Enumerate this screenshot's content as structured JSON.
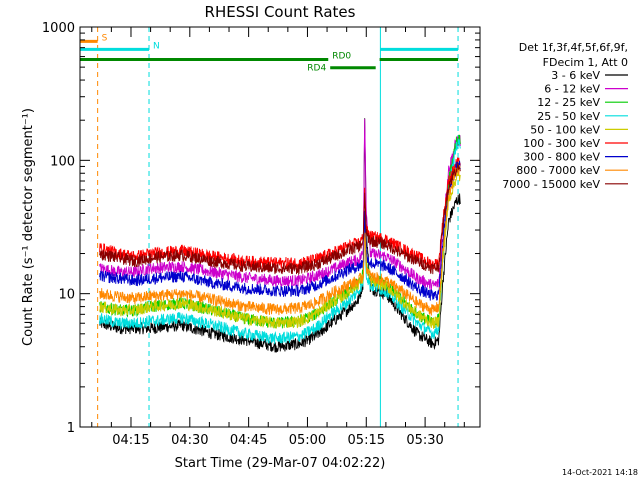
{
  "chart_data": {
    "type": "line",
    "title": "RHESSI Count Rates",
    "xlabel": "Start Time (29-Mar-07 04:02:22)",
    "ylabel": "Count Rate (s⁻¹ detector segment⁻¹)",
    "yscale": "log",
    "ylim": [
      1,
      1000
    ],
    "xlim_min": [
      0,
      102
    ],
    "x_ticks": [
      {
        "t": 13,
        "label": "04:15"
      },
      {
        "t": 28,
        "label": "04:30"
      },
      {
        "t": 43,
        "label": "04:45"
      },
      {
        "t": 58,
        "label": "05:00"
      },
      {
        "t": 73,
        "label": "05:15"
      },
      {
        "t": 88,
        "label": "05:30"
      }
    ],
    "y_ticks": [
      {
        "v": 1,
        "label": "1"
      },
      {
        "v": 10,
        "label": "10"
      },
      {
        "v": 100,
        "label": "100"
      },
      {
        "v": 1000,
        "label": "1000"
      }
    ],
    "legend_header": [
      "Det 1f,3f,4f,5f,6f,9f,",
      "FDecim 1, Att 0"
    ],
    "legend_position": "right",
    "series": [
      {
        "name": "3 - 6 keV",
        "color": "#000000",
        "values": [
          [
            5,
            6
          ],
          [
            10,
            5.5
          ],
          [
            14,
            5.5
          ],
          [
            18,
            5.5
          ],
          [
            26,
            5.8
          ],
          [
            34,
            5
          ],
          [
            42,
            4.5
          ],
          [
            50,
            4
          ],
          [
            56,
            4.2
          ],
          [
            60,
            4.8
          ],
          [
            64,
            6
          ],
          [
            68,
            7.5
          ],
          [
            71,
            9
          ],
          [
            72.2,
            12
          ],
          [
            72.6,
            210
          ],
          [
            73,
            30
          ],
          [
            74,
            11
          ],
          [
            78,
            10
          ],
          [
            82,
            7
          ],
          [
            86,
            5
          ],
          [
            90,
            4.2
          ],
          [
            91.5,
            4.5
          ],
          [
            92.5,
            12
          ],
          [
            94,
            35
          ],
          [
            96,
            50
          ],
          [
            97,
            52
          ]
        ]
      },
      {
        "name": "6 - 12 keV",
        "color": "#cc00cc",
        "values": [
          [
            5,
            15.5
          ],
          [
            10,
            14.5
          ],
          [
            14,
            14.5
          ],
          [
            18,
            15.5
          ],
          [
            26,
            16
          ],
          [
            34,
            14.5
          ],
          [
            42,
            13.2
          ],
          [
            50,
            12.5
          ],
          [
            56,
            12.5
          ],
          [
            60,
            13.5
          ],
          [
            64,
            15
          ],
          [
            68,
            17
          ],
          [
            71,
            18
          ],
          [
            72.2,
            20
          ],
          [
            72.6,
            230
          ],
          [
            73,
            40
          ],
          [
            74,
            20
          ],
          [
            78,
            19
          ],
          [
            82,
            16
          ],
          [
            86,
            13
          ],
          [
            90,
            11.5
          ],
          [
            91.5,
            12
          ],
          [
            92.5,
            30
          ],
          [
            94,
            85
          ],
          [
            96,
            140
          ],
          [
            97,
            140
          ]
        ]
      },
      {
        "name": "12 - 25 keV",
        "color": "#00cc00",
        "values": [
          [
            5,
            8
          ],
          [
            10,
            7.5
          ],
          [
            14,
            7.5
          ],
          [
            18,
            8
          ],
          [
            26,
            8.5
          ],
          [
            34,
            7.5
          ],
          [
            42,
            6.5
          ],
          [
            50,
            6
          ],
          [
            56,
            6.2
          ],
          [
            60,
            7
          ],
          [
            64,
            8.5
          ],
          [
            68,
            10
          ],
          [
            71,
            12
          ],
          [
            72.2,
            14
          ],
          [
            72.6,
            40
          ],
          [
            73,
            17
          ],
          [
            74,
            13
          ],
          [
            78,
            12
          ],
          [
            82,
            9
          ],
          [
            86,
            7
          ],
          [
            90,
            6
          ],
          [
            91.5,
            6.5
          ],
          [
            92.5,
            20
          ],
          [
            94,
            70
          ],
          [
            96,
            140
          ],
          [
            97,
            145
          ]
        ]
      },
      {
        "name": "25 - 50 keV",
        "color": "#00dddd",
        "values": [
          [
            5,
            6.5
          ],
          [
            10,
            6
          ],
          [
            14,
            6
          ],
          [
            18,
            6.2
          ],
          [
            26,
            6.6
          ],
          [
            34,
            5.8
          ],
          [
            42,
            5
          ],
          [
            50,
            4.6
          ],
          [
            56,
            4.8
          ],
          [
            60,
            5.5
          ],
          [
            64,
            7
          ],
          [
            68,
            8.5
          ],
          [
            71,
            10.5
          ],
          [
            72.2,
            12
          ],
          [
            72.6,
            30
          ],
          [
            73,
            14
          ],
          [
            74,
            11.5
          ],
          [
            78,
            10.5
          ],
          [
            82,
            8
          ],
          [
            86,
            6
          ],
          [
            90,
            5
          ],
          [
            91.5,
            5.5
          ],
          [
            92.5,
            18
          ],
          [
            94,
            60
          ],
          [
            96,
            130
          ],
          [
            97,
            135
          ]
        ]
      },
      {
        "name": "50 - 100 keV",
        "color": "#cccc00",
        "values": [
          [
            5,
            8
          ],
          [
            10,
            7.5
          ],
          [
            14,
            7.5
          ],
          [
            18,
            8
          ],
          [
            26,
            8.5
          ],
          [
            34,
            7.5
          ],
          [
            42,
            6.5
          ],
          [
            50,
            6
          ],
          [
            56,
            6.2
          ],
          [
            60,
            7
          ],
          [
            64,
            8.5
          ],
          [
            68,
            10
          ],
          [
            71,
            12
          ],
          [
            72.2,
            13
          ],
          [
            72.6,
            35
          ],
          [
            73,
            16
          ],
          [
            74,
            12.5
          ],
          [
            78,
            11.5
          ],
          [
            82,
            9
          ],
          [
            86,
            7
          ],
          [
            90,
            6
          ],
          [
            91.5,
            6.2
          ],
          [
            92.5,
            17
          ],
          [
            94,
            50
          ],
          [
            96,
            75
          ],
          [
            97,
            75
          ]
        ]
      },
      {
        "name": "100 - 300 keV",
        "color": "#ff0000",
        "values": [
          [
            5,
            22
          ],
          [
            10,
            20
          ],
          [
            14,
            19
          ],
          [
            18,
            20
          ],
          [
            26,
            21
          ],
          [
            34,
            19
          ],
          [
            42,
            17.5
          ],
          [
            50,
            17
          ],
          [
            56,
            17
          ],
          [
            60,
            18
          ],
          [
            64,
            20
          ],
          [
            68,
            22.5
          ],
          [
            71,
            24
          ],
          [
            72.2,
            26
          ],
          [
            72.6,
            60
          ],
          [
            73,
            30
          ],
          [
            74,
            27
          ],
          [
            78,
            25.5
          ],
          [
            82,
            22
          ],
          [
            86,
            19
          ],
          [
            90,
            16.5
          ],
          [
            91.5,
            17
          ],
          [
            92.5,
            35
          ],
          [
            94,
            70
          ],
          [
            96,
            95
          ],
          [
            97,
            95
          ]
        ]
      },
      {
        "name": "300 - 800 keV",
        "color": "#0000cc",
        "values": [
          [
            5,
            13.5
          ],
          [
            10,
            13
          ],
          [
            14,
            12.5
          ],
          [
            18,
            13
          ],
          [
            26,
            13.5
          ],
          [
            34,
            12
          ],
          [
            42,
            11
          ],
          [
            50,
            10.5
          ],
          [
            56,
            10.5
          ],
          [
            60,
            11.5
          ],
          [
            64,
            13
          ],
          [
            68,
            15
          ],
          [
            71,
            16
          ],
          [
            72.2,
            17
          ],
          [
            72.6,
            40
          ],
          [
            73,
            20
          ],
          [
            74,
            17
          ],
          [
            78,
            16
          ],
          [
            82,
            13.5
          ],
          [
            86,
            11
          ],
          [
            90,
            9.5
          ],
          [
            91.5,
            10
          ],
          [
            92.5,
            25
          ],
          [
            94,
            60
          ],
          [
            96,
            90
          ],
          [
            97,
            90
          ]
        ]
      },
      {
        "name": "800 - 7000 keV",
        "color": "#ff8800",
        "values": [
          [
            5,
            10
          ],
          [
            10,
            9.5
          ],
          [
            14,
            9.2
          ],
          [
            18,
            9.6
          ],
          [
            26,
            10
          ],
          [
            34,
            9
          ],
          [
            42,
            8
          ],
          [
            50,
            7.6
          ],
          [
            56,
            7.8
          ],
          [
            60,
            8.5
          ],
          [
            64,
            10
          ],
          [
            68,
            11.5
          ],
          [
            71,
            12.5
          ],
          [
            72.2,
            13.5
          ],
          [
            72.6,
            30
          ],
          [
            73,
            16
          ],
          [
            74,
            13.5
          ],
          [
            78,
            12.5
          ],
          [
            82,
            10.5
          ],
          [
            86,
            8.5
          ],
          [
            90,
            7.5
          ],
          [
            91.5,
            8
          ],
          [
            92.5,
            20
          ],
          [
            94,
            55
          ],
          [
            96,
            85
          ],
          [
            97,
            85
          ]
        ]
      },
      {
        "name": "7000 - 15000 keV",
        "color": "#880000",
        "values": [
          [
            5,
            20
          ],
          [
            10,
            18.5
          ],
          [
            14,
            17.5
          ],
          [
            18,
            18.5
          ],
          [
            26,
            19.5
          ],
          [
            34,
            17.5
          ],
          [
            42,
            16
          ],
          [
            50,
            15.5
          ],
          [
            56,
            15.5
          ],
          [
            60,
            16.5
          ],
          [
            64,
            18.5
          ],
          [
            68,
            21
          ],
          [
            71,
            22.5
          ],
          [
            72.2,
            24
          ],
          [
            72.6,
            55
          ],
          [
            73,
            28
          ],
          [
            74,
            25
          ],
          [
            78,
            23.5
          ],
          [
            82,
            20
          ],
          [
            86,
            17.5
          ],
          [
            90,
            15.5
          ],
          [
            91.5,
            16
          ],
          [
            92.5,
            32
          ],
          [
            94,
            65
          ],
          [
            96,
            88
          ],
          [
            97,
            88
          ]
        ]
      }
    ],
    "annotations": {
      "vlines": [
        {
          "t": 4.5,
          "color": "#ff8800",
          "style": "dashed"
        },
        {
          "t": 17.6,
          "color": "#00dddd",
          "style": "dashed"
        },
        {
          "t": 76.6,
          "color": "#00dddd",
          "style": "solid"
        },
        {
          "t": 96.4,
          "color": "#00dddd",
          "style": "dashed"
        }
      ],
      "hbars": [
        {
          "t0": 0,
          "t1": 4.5,
          "v": 780,
          "color": "#ff8800",
          "label": "S",
          "label_side": "right"
        },
        {
          "t0": 0,
          "t1": 17.6,
          "v": 680,
          "color": "#00dddd",
          "label": "N",
          "label_side": "right"
        },
        {
          "t0": 76.6,
          "t1": 96.4,
          "v": 680,
          "color": "#00dddd",
          "label": "",
          "label_side": "right"
        },
        {
          "t0": 0,
          "t1": 63.3,
          "v": 570,
          "color": "#008800",
          "label": "RD0",
          "label_side": "right"
        },
        {
          "t0": 76.4,
          "t1": 96.4,
          "v": 570,
          "color": "#008800",
          "label": "",
          "label_side": "right"
        },
        {
          "t0": 63.8,
          "t1": 75.4,
          "v": 495,
          "color": "#008800",
          "label": "RD4",
          "label_side": "left"
        }
      ]
    },
    "timestamp": "14-Oct-2021 14:18"
  }
}
